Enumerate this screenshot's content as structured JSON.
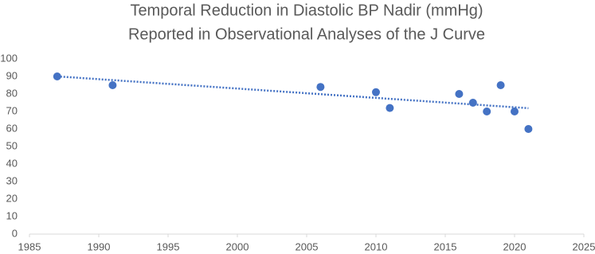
{
  "chart_data": {
    "type": "scatter",
    "title": [
      "Temporal Reduction in Diastolic BP Nadir (mmHg)",
      "Reported in Observational Analyses of the J Curve"
    ],
    "x": [
      1987,
      1991,
      2006,
      2010,
      2011,
      2016,
      2017,
      2018,
      2019,
      2020,
      2021
    ],
    "series": [
      {
        "name": "Diastolic BP nadir",
        "color": "#4472c4",
        "values": [
          90,
          85,
          84,
          81,
          72,
          80,
          75,
          70,
          85,
          70,
          60
        ]
      }
    ],
    "trendline": "linear",
    "xlim": [
      1985,
      2025
    ],
    "xticks": [
      1985,
      1990,
      1995,
      2000,
      2005,
      2010,
      2015,
      2020,
      2025
    ],
    "ylim": [
      0,
      100
    ],
    "yticks": [
      0,
      10,
      20,
      30,
      40,
      50,
      60,
      70,
      80,
      90,
      100
    ],
    "grid": false
  }
}
